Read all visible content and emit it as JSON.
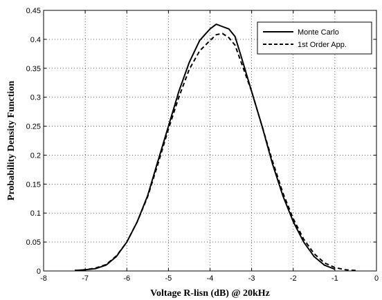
{
  "chart_data": {
    "type": "line",
    "xlabel": "Voltage R-lisn (dB) @ 20kHz",
    "ylabel": "Probability Density Function",
    "xlim": [
      -8,
      0
    ],
    "ylim": [
      0,
      0.45
    ],
    "xticks": [
      -8,
      -7,
      -6,
      -5,
      -4,
      -3,
      -2,
      -1,
      0
    ],
    "yticks": [
      0,
      0.05,
      0.1,
      0.15,
      0.2,
      0.25,
      0.3,
      0.35,
      0.4,
      0.45
    ],
    "xtick_labels": [
      "-8",
      "-7",
      "-6",
      "-5",
      "-4",
      "-3",
      "-2",
      "-1",
      "0"
    ],
    "ytick_labels": [
      "0",
      "0.05",
      "0.1",
      "0.15",
      "0.2",
      "0.25",
      "0.3",
      "0.35",
      "0.4",
      "0.45"
    ],
    "grid": true,
    "legend_position": "top-right",
    "series": [
      {
        "name": "Monte Carlo",
        "style": "solid",
        "color": "#000000",
        "x": [
          -7.25,
          -7.0,
          -6.75,
          -6.5,
          -6.25,
          -6.0,
          -5.75,
          -5.5,
          -5.25,
          -5.0,
          -4.75,
          -4.5,
          -4.25,
          -4.0,
          -3.85,
          -3.7,
          -3.55,
          -3.4,
          -3.25,
          -3.0,
          -2.75,
          -2.5,
          -2.25,
          -2.0,
          -1.75,
          -1.5,
          -1.25,
          -1.0
        ],
        "y": [
          0.001,
          0.002,
          0.004,
          0.01,
          0.025,
          0.05,
          0.085,
          0.13,
          0.19,
          0.25,
          0.31,
          0.36,
          0.398,
          0.418,
          0.426,
          0.422,
          0.418,
          0.405,
          0.37,
          0.31,
          0.25,
          0.185,
          0.13,
          0.085,
          0.05,
          0.025,
          0.01,
          0.003
        ]
      },
      {
        "name": "1st Order App.",
        "style": "dashed",
        "color": "#000000",
        "x": [
          -7.25,
          -7.0,
          -6.75,
          -6.5,
          -6.25,
          -6.0,
          -5.75,
          -5.5,
          -5.25,
          -5.0,
          -4.75,
          -4.5,
          -4.25,
          -4.0,
          -3.85,
          -3.7,
          -3.55,
          -3.4,
          -3.25,
          -3.0,
          -2.75,
          -2.5,
          -2.25,
          -2.0,
          -1.75,
          -1.5,
          -1.25,
          -1.0,
          -0.75,
          -0.5
        ],
        "y": [
          0.001,
          0.002,
          0.005,
          0.011,
          0.026,
          0.05,
          0.085,
          0.128,
          0.185,
          0.245,
          0.3,
          0.348,
          0.38,
          0.398,
          0.408,
          0.41,
          0.403,
          0.39,
          0.36,
          0.31,
          0.25,
          0.19,
          0.135,
          0.09,
          0.055,
          0.03,
          0.014,
          0.006,
          0.002,
          0.001
        ]
      }
    ]
  }
}
